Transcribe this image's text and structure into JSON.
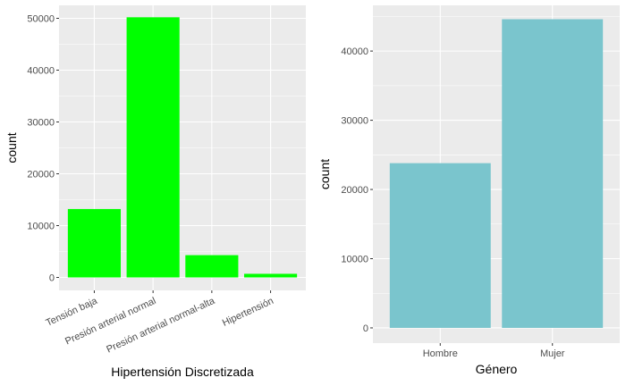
{
  "chart_data": [
    {
      "type": "bar",
      "categories": [
        "Tensión baja",
        "Presión arterial normal",
        "Presión arterial normal-alta",
        "Hipertensión"
      ],
      "values": [
        13200,
        50200,
        4300,
        700
      ],
      "xlabel": "Hipertensión Discretizada",
      "ylabel": "count",
      "ylim": [
        -2500,
        52500
      ],
      "yticks": [
        0,
        10000,
        20000,
        30000,
        40000,
        50000
      ],
      "grid": true,
      "bar_color": "#00FF00",
      "x_tick_rotation": 25
    },
    {
      "type": "bar",
      "categories": [
        "Hombre",
        "Mujer"
      ],
      "values": [
        23800,
        44600
      ],
      "xlabel": "Género",
      "ylabel": "count",
      "ylim": [
        -2200,
        46600
      ],
      "yticks": [
        0,
        10000,
        20000,
        30000,
        40000
      ],
      "grid": true,
      "bar_color": "#7AC5CD",
      "x_tick_rotation": 0
    }
  ],
  "colors": {
    "panel_background": "#EBEBEB",
    "grid_major": "#FFFFFF",
    "tick_text": "#4D4D4D"
  }
}
